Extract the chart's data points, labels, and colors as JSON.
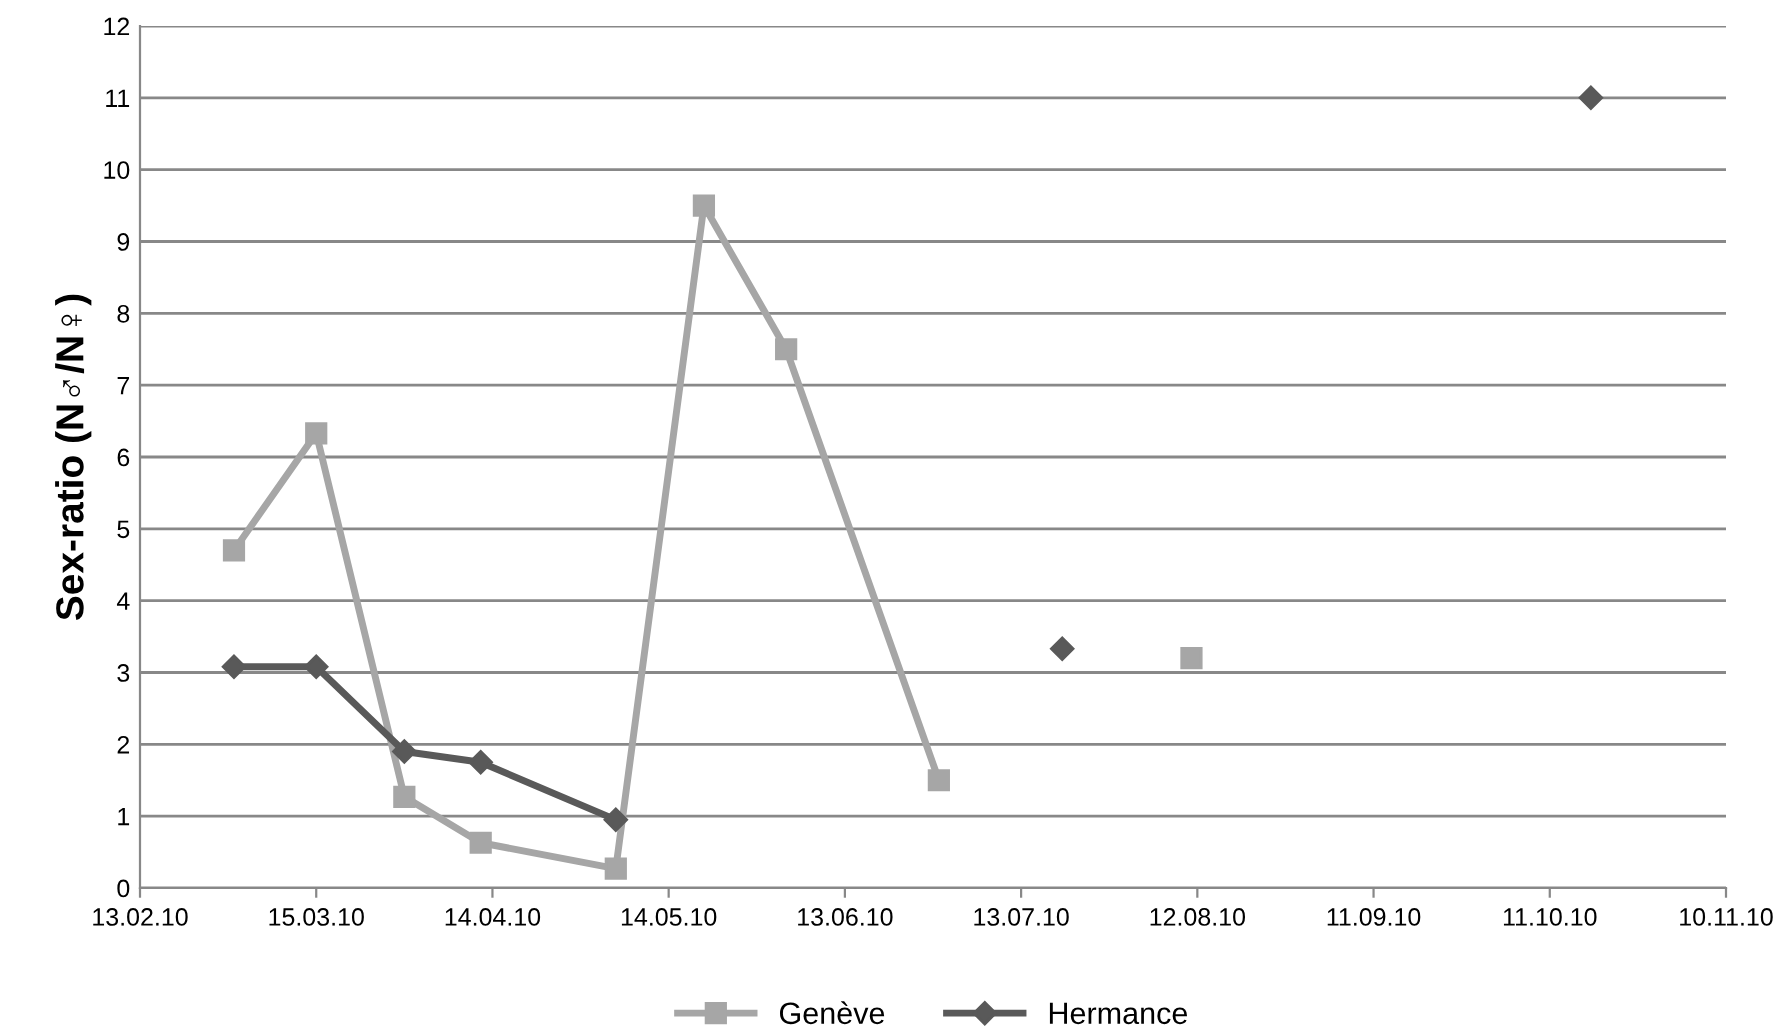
{
  "chart_data": {
    "type": "line",
    "ylabel": "Sex-ratio (N♂/N♀)",
    "xlim": [
      "2010-02-13",
      "2010-11-10"
    ],
    "xticks": [
      {
        "value": "2010-02-13",
        "label": "13.02.10"
      },
      {
        "value": "2010-03-15",
        "label": "15.03.10"
      },
      {
        "value": "2010-04-14",
        "label": "14.04.10"
      },
      {
        "value": "2010-05-14",
        "label": "14.05.10"
      },
      {
        "value": "2010-06-13",
        "label": "13.06.10"
      },
      {
        "value": "2010-07-13",
        "label": "13.07.10"
      },
      {
        "value": "2010-08-12",
        "label": "12.08.10"
      },
      {
        "value": "2010-09-11",
        "label": "11.09.10"
      },
      {
        "value": "2010-10-11",
        "label": "11.10.10"
      },
      {
        "value": "2010-11-10",
        "label": "10.11.10"
      }
    ],
    "ylim": [
      0,
      12
    ],
    "yticks": [
      0,
      1,
      2,
      3,
      4,
      5,
      6,
      7,
      8,
      9,
      10,
      11,
      12
    ],
    "grid": "y",
    "legend": "bottom",
    "series": [
      {
        "name": "Genève",
        "color": "#a6a6a6",
        "marker": "square",
        "x": [
          "2010-03-01",
          "2010-03-15",
          "2010-03-30",
          "2010-04-12",
          "2010-05-05",
          "2010-05-20",
          "2010-06-03",
          "2010-06-29",
          "2010-07-20",
          "2010-08-11"
        ],
        "values": [
          4.7,
          6.33,
          1.27,
          0.63,
          0.27,
          9.5,
          7.5,
          1.5,
          null,
          3.2
        ]
      },
      {
        "name": "Hermance",
        "color": "#595959",
        "marker": "diamond",
        "x": [
          "2010-03-01",
          "2010-03-15",
          "2010-03-30",
          "2010-04-12",
          "2010-05-05",
          "2010-06-13",
          "2010-07-20",
          "2010-09-01",
          "2010-10-18"
        ],
        "values": [
          3.08,
          3.08,
          1.9,
          1.75,
          0.95,
          null,
          3.33,
          null,
          11
        ]
      }
    ]
  }
}
